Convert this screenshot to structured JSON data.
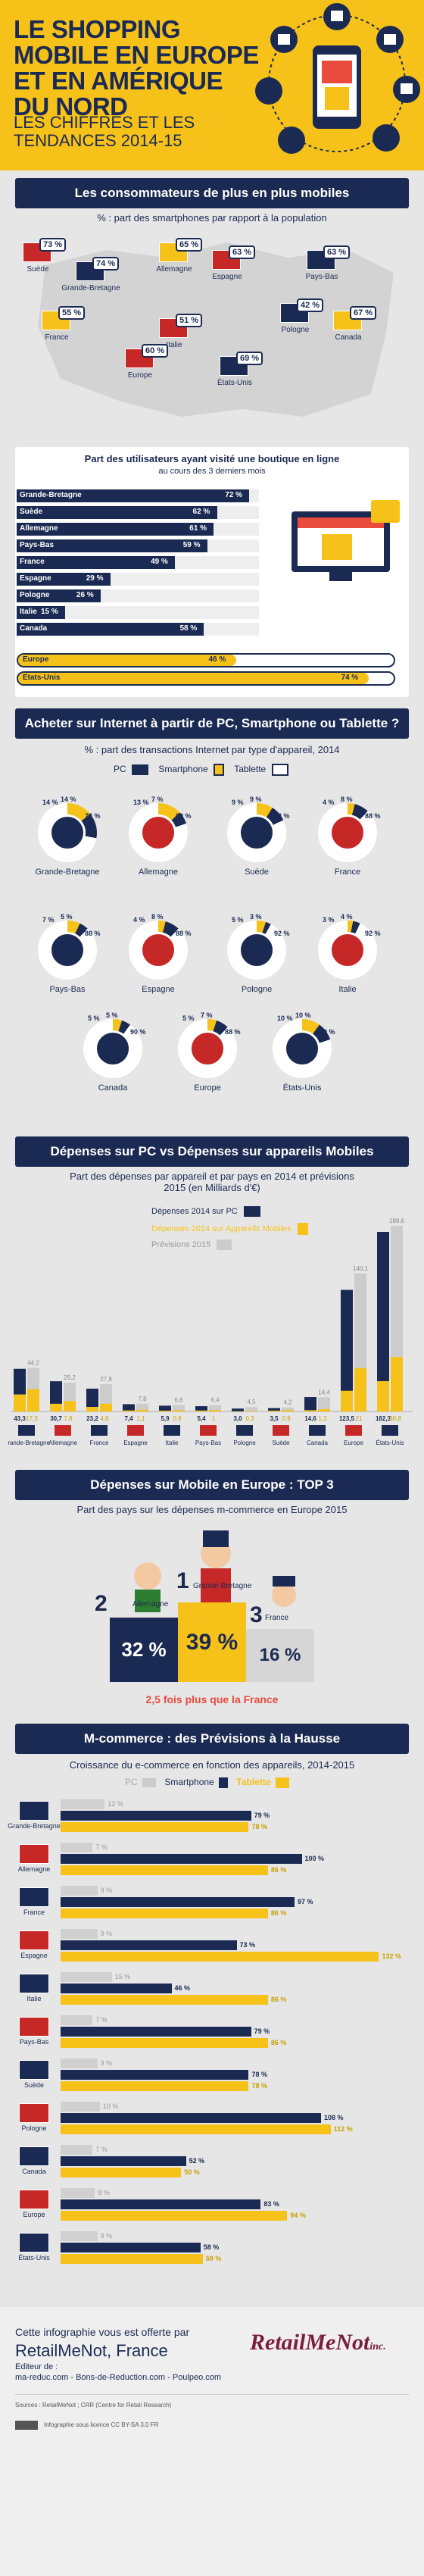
{
  "header": {
    "title": "LE SHOPPING MOBILE EN EUROPE ET EN AMÉRIQUE DU NORD",
    "subtitle": "LES CHIFFRES ET LES TENDANCES 2014-15"
  },
  "section1": {
    "banner": "Les consommateurs de plus en plus mobiles",
    "subtitle": "% : part des smartphones par rapport à la population",
    "countries": [
      {
        "name": "Suède",
        "pct": "73 %"
      },
      {
        "name": "Grande-Bretagne",
        "pct": "74 %"
      },
      {
        "name": "Allemagne",
        "pct": "65 %"
      },
      {
        "name": "Espagne",
        "pct": "63 %"
      },
      {
        "name": "Pays-Bas",
        "pct": "63 %"
      },
      {
        "name": "France",
        "pct": "55 %"
      },
      {
        "name": "Italie",
        "pct": "51 %"
      },
      {
        "name": "Pologne",
        "pct": "42 %"
      },
      {
        "name": "Canada",
        "pct": "67 %"
      },
      {
        "name": "Europe",
        "pct": "60 %"
      },
      {
        "name": "États-Unis",
        "pct": "69 %"
      }
    ]
  },
  "section2": {
    "title": "Part des utilisateurs ayant visité une boutique en ligne",
    "subtitle": "au cours des 3 derniers mois",
    "bars": [
      {
        "name": "Grande-Bretagne",
        "value": 72,
        "label": "72 %"
      },
      {
        "name": "Suède",
        "value": 62,
        "label": "62 %"
      },
      {
        "name": "Allemagne",
        "value": 61,
        "label": "61 %"
      },
      {
        "name": "Pays-Bas",
        "value": 59,
        "label": "59 %"
      },
      {
        "name": "France",
        "value": 49,
        "label": "49 %"
      },
      {
        "name": "Espagne",
        "value": 29,
        "label": "29 %"
      },
      {
        "name": "Pologne",
        "value": 26,
        "label": "26 %"
      },
      {
        "name": "Italie",
        "value": 15,
        "label": "15 %"
      },
      {
        "name": "Canada",
        "value": 58,
        "label": "58 %"
      }
    ],
    "highlight": [
      {
        "name": "Europe",
        "value": 46,
        "label": "46 %"
      },
      {
        "name": "Etats-Unis",
        "value": 74,
        "label": "74 %"
      }
    ]
  },
  "section3": {
    "banner": "Acheter sur Internet à partir de PC, Smartphone ou Tablette ?",
    "subtitle": "% : part des transactions Internet par type d'appareil, 2014",
    "legend": {
      "pc": "PC",
      "smartphone": "Smartphone",
      "tablet": "Tablette"
    },
    "donuts": [
      {
        "name": "Grande-Bretagne",
        "pc": 72,
        "phone": 14,
        "tablet": 14
      },
      {
        "name": "Allemagne",
        "pc": 80,
        "phone": 7,
        "tablet": 13
      },
      {
        "name": "Suède",
        "pc": 82,
        "phone": 9,
        "tablet": 9
      },
      {
        "name": "France",
        "pc": 88,
        "phone": 8,
        "tablet": 4
      },
      {
        "name": "Pays-Bas",
        "pc": 88,
        "phone": 5,
        "tablet": 7
      },
      {
        "name": "Espagne",
        "pc": 88,
        "phone": 8,
        "tablet": 4
      },
      {
        "name": "Pologne",
        "pc": 92,
        "phone": 3,
        "tablet": 5
      },
      {
        "name": "Italie",
        "pc": 92,
        "phone": 4,
        "tablet": 3
      },
      {
        "name": "Canada",
        "pc": 90,
        "phone": 5,
        "tablet": 5
      },
      {
        "name": "Europe",
        "pc": 88,
        "phone": 7,
        "tablet": 5
      },
      {
        "name": "États-Unis",
        "pc": 80,
        "phone": 10,
        "tablet": 10
      }
    ]
  },
  "section4": {
    "banner": "Dépenses sur PC vs Dépenses sur appareils Mobiles",
    "subtitle": "Part des dépenses par appareil et par pays en 2014 et prévisions 2015 (en Milliards d'€)",
    "legend": {
      "pc": "Dépenses 2014 sur PC",
      "mobile": "Dépenses 2014 sur Appareils Mobiles",
      "forecast": "Prévisions 2015"
    }
  },
  "chart_data": {
    "type": "bar",
    "categories": [
      "Grande-Bretagne",
      "Allemagne",
      "France",
      "Espagne",
      "Italie",
      "Pays-Bas",
      "Pologne",
      "Suède",
      "Canada",
      "Europe",
      "États-Unis"
    ],
    "series": [
      {
        "name": "Dépenses 2014 sur PC",
        "values": [
          43.3,
          30.7,
          23.2,
          7.4,
          5.9,
          5.4,
          3.0,
          3.5,
          14.6,
          123.5,
          182.3
        ]
      },
      {
        "name": "Dépenses 2014 sur Appareils Mobiles",
        "values": [
          17.3,
          7.8,
          4.6,
          1.1,
          0.9,
          1.0,
          0.3,
          0.9,
          1.3,
          21.0,
          30.8
        ]
      },
      {
        "name": "Prévisions 2015",
        "values": [
          44.2,
          29.2,
          27.8,
          7.8,
          6.6,
          6.4,
          4.5,
          4.2,
          14.4,
          140.1,
          188.6
        ]
      }
    ],
    "value_labels_2014": [
      "43,3",
      "30,7",
      "23,2",
      "7,4",
      "5,9",
      "5,4",
      "3,0",
      "3,5",
      "14,6",
      "123,5",
      "182,3"
    ],
    "value_labels_mobile": [
      "17,3",
      "7,8",
      "4,6",
      "1,1",
      "0,9",
      "1",
      "0,3",
      "0,9",
      "1,3",
      "21",
      "30,8"
    ],
    "value_labels_2015": [
      "44,2",
      "29,2",
      "27,8",
      "7,8",
      "6,6",
      "6,4",
      "4,5",
      "4,2",
      "14,4",
      "140,1",
      "188,6"
    ],
    "forecast_mobile_labels": [
      "22,7",
      "10,6",
      "7,9",
      "1,8",
      "1,3",
      "1,4",
      "0,6",
      "1,4",
      "2,4",
      "44,0",
      "55,3"
    ],
    "ylim": [
      0,
      200
    ]
  },
  "section5": {
    "banner": "Dépenses sur Mobile en Europe : TOP 3",
    "subtitle": "Part des pays sur les dépenses m-commerce en Europe 2015",
    "podium": [
      {
        "rank": "2",
        "name": "Allemagne",
        "pct": "32 %"
      },
      {
        "rank": "1",
        "name": "Grande-Bretagne",
        "pct": "39 %"
      },
      {
        "rank": "3",
        "name": "France",
        "pct": "16 %"
      }
    ],
    "note": "2,5 fois plus que la France"
  },
  "section6": {
    "banner": "M-commerce : des Prévisions à la Hausse",
    "subtitle": "Croissance du e-commerce en fonction des appareils, 2014-2015",
    "legend": {
      "pc": "PC",
      "smartphone": "Smartphone",
      "tablet": "Tablette"
    },
    "rows": [
      {
        "name": "Grande-Bretagne",
        "pc": "12 %",
        "phone": "79 %",
        "tablet": "78 %",
        "pcv": 12,
        "phonev": 79,
        "tabletv": 78
      },
      {
        "name": "Allemagne",
        "pc": "7 %",
        "phone": "100 %",
        "tablet": "86 %",
        "pcv": 7,
        "phonev": 100,
        "tabletv": 86
      },
      {
        "name": "France",
        "pc": "9 %",
        "phone": "97 %",
        "tablet": "86 %",
        "pcv": 9,
        "phonev": 97,
        "tabletv": 86
      },
      {
        "name": "Espagne",
        "pc": "9 %",
        "phone": "73 %",
        "tablet": "132 %",
        "pcv": 9,
        "phonev": 73,
        "tabletv": 132
      },
      {
        "name": "Italie",
        "pc": "15 %",
        "phone": "46 %",
        "tablet": "86 %",
        "pcv": 15,
        "phonev": 46,
        "tabletv": 86
      },
      {
        "name": "Pays-Bas",
        "pc": "7 %",
        "phone": "79 %",
        "tablet": "86 %",
        "pcv": 7,
        "phonev": 79,
        "tabletv": 86
      },
      {
        "name": "Suède",
        "pc": "9 %",
        "phone": "78 %",
        "tablet": "78 %",
        "pcv": 9,
        "phonev": 78,
        "tabletv": 78
      },
      {
        "name": "Pologne",
        "pc": "10 %",
        "phone": "108 %",
        "tablet": "112 %",
        "pcv": 10,
        "phonev": 108,
        "tabletv": 112
      },
      {
        "name": "Canada",
        "pc": "7 %",
        "phone": "52 %",
        "tablet": "50 %",
        "pcv": 7,
        "phonev": 52,
        "tabletv": 50
      },
      {
        "name": "Europe",
        "pc": "8 %",
        "phone": "83 %",
        "tablet": "94 %",
        "pcv": 8,
        "phonev": 83,
        "tabletv": 94
      },
      {
        "name": "États-Unis",
        "pc": "9 %",
        "phone": "58 %",
        "tablet": "59 %",
        "pcv": 9,
        "phonev": 58,
        "tabletv": 59
      }
    ]
  },
  "footer": {
    "offered": "Cette infographie vous est offerte par",
    "company": "RetailMeNot, France",
    "editor_label": "Editeur de :",
    "sites": "ma-reduc.com - Bons-de-Reduction.com - Poulpeo.com",
    "logo": "RetailMeNot",
    "logo_suffix": "inc.",
    "sources_label": "Sources :",
    "sources": "RetailMeNot ; CRR (Centre for Retail Research)",
    "licence": "Infographie sous licence CC BY-SA 3.0 FR"
  },
  "colors": {
    "navy": "#1b2a52",
    "yellow": "#f6c21a",
    "grey": "#d6d6d6",
    "bg": "#e6e6e6"
  }
}
